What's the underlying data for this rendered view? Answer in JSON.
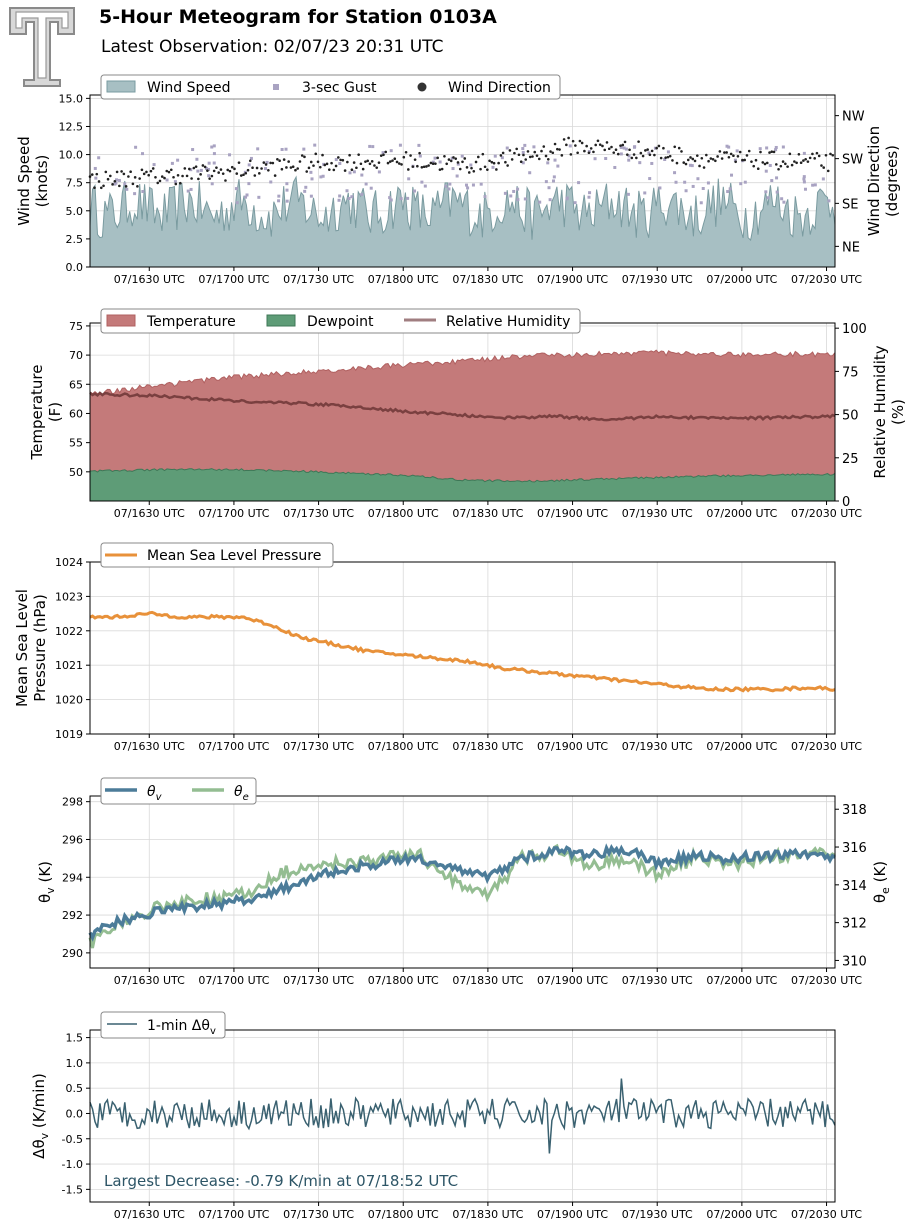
{
  "page": {
    "title": "5-Hour Meteogram for Station 0103A",
    "subtitle": "Latest Observation: 02/07/23 20:31 UTC",
    "logo": "texas-tech-double-t-logo"
  },
  "colors": {
    "wind_fill": "#a7bfc3",
    "wind_edge": "#7a9ba0",
    "gust": "#a9a3c2",
    "direction": "#222222",
    "temperature": "#c47a7a",
    "temperature_edge": "#b06060",
    "dewpoint": "#5e9c77",
    "dewpoint_edge": "#3f7757",
    "rh": "#7a4040",
    "pressure": "#e8913a",
    "theta_v": "#4c7c99",
    "theta_e": "#94bd92",
    "dtheta": "#3a6170",
    "annotation": "#2d5566"
  },
  "time_ticks": [
    "07/1630 UTC",
    "07/1700 UTC",
    "07/1730 UTC",
    "07/1800 UTC",
    "07/1830 UTC",
    "07/1900 UTC",
    "07/1930 UTC",
    "07/2000 UTC",
    "07/2030 UTC"
  ],
  "chart_data": [
    {
      "type": "area",
      "id": "wind",
      "ylabel": "Wind Speed\n(knots)",
      "y2label": "Wind Direction\n(degrees)",
      "ylim": [
        0,
        15.3
      ],
      "yticks": [
        "0.0",
        "2.5",
        "5.0",
        "7.5",
        "10.0",
        "12.5",
        "15.0"
      ],
      "y2ticks": [
        "NE",
        "SE",
        "SW",
        "NW"
      ],
      "legend": [
        "Wind Speed",
        "3-sec Gust",
        "Wind Direction"
      ],
      "x_range_hours": [
        16.15,
        20.55
      ],
      "series": [
        {
          "name": "Wind Speed",
          "kind": "area",
          "values_knots_base": 5.2,
          "amplitude": 2.3
        },
        {
          "name": "3-sec Gust",
          "kind": "scatter",
          "values_knots_base": 8.3,
          "amplitude": 2.6
        },
        {
          "name": "Wind Direction",
          "kind": "scatter",
          "segments": [
            {
              "x": 16.15,
              "y": 7.7
            },
            {
              "x": 16.9,
              "y": 8.4
            },
            {
              "x": 17.5,
              "y": 9.3
            },
            {
              "x": 18.0,
              "y": 9.5
            },
            {
              "x": 18.4,
              "y": 9.1
            },
            {
              "x": 18.7,
              "y": 9.8
            },
            {
              "x": 19.0,
              "y": 10.8
            },
            {
              "x": 19.4,
              "y": 10.4
            },
            {
              "x": 19.8,
              "y": 9.6
            },
            {
              "x": 20.1,
              "y": 9.5
            },
            {
              "x": 20.55,
              "y": 9.3
            }
          ]
        }
      ]
    },
    {
      "type": "area",
      "id": "thermo",
      "ylabel": "Temperature\n(F)",
      "y2label": "Relative Humidity\n(%)",
      "ylim": [
        45,
        75.5
      ],
      "yticks": [
        "50",
        "55",
        "60",
        "65",
        "70",
        "75"
      ],
      "y2lim": [
        0,
        103
      ],
      "y2ticks": [
        "0",
        "25",
        "50",
        "75",
        "100"
      ],
      "legend": [
        "Temperature",
        "Dewpoint",
        "Relative Humidity"
      ],
      "series": [
        {
          "name": "Temperature",
          "x": [
            16.15,
            16.5,
            17.0,
            17.5,
            18.0,
            18.3,
            18.6,
            18.8,
            19.0,
            19.2,
            19.5,
            19.8,
            20.0,
            20.3,
            20.55
          ],
          "y": [
            63.3,
            64.6,
            66.2,
            67.3,
            68.3,
            68.8,
            69.6,
            70.1,
            70.0,
            70.3,
            70.4,
            70.0,
            70.1,
            70.2,
            70.1
          ]
        },
        {
          "name": "Dewpoint",
          "x": [
            16.15,
            16.6,
            17.0,
            17.5,
            18.0,
            18.4,
            18.8,
            19.2,
            19.6,
            20.0,
            20.55
          ],
          "y": [
            50.1,
            50.4,
            50.4,
            50.0,
            49.4,
            48.5,
            48.4,
            48.8,
            49.1,
            49.4,
            49.6
          ]
        },
        {
          "name": "Relative Humidity",
          "x": [
            16.15,
            16.5,
            17.0,
            17.5,
            18.0,
            18.3,
            18.6,
            18.9,
            19.2,
            19.5,
            19.8,
            20.1,
            20.55
          ],
          "y": [
            62,
            61,
            58,
            56,
            52,
            50,
            48,
            49,
            47,
            49,
            48,
            48,
            49
          ]
        }
      ]
    },
    {
      "type": "line",
      "id": "pressure",
      "ylabel": "Mean Sea Level\nPressure (hPa)",
      "ylim": [
        1019,
        1024
      ],
      "yticks": [
        "1019",
        "1020",
        "1021",
        "1022",
        "1023",
        "1024"
      ],
      "legend": [
        "Mean Sea Level Pressure"
      ],
      "series": [
        {
          "name": "Mean Sea Level Pressure",
          "x": [
            16.15,
            16.3,
            16.5,
            16.7,
            16.9,
            17.05,
            17.2,
            17.4,
            17.6,
            17.8,
            18.0,
            18.2,
            18.4,
            18.6,
            18.8,
            19.0,
            19.2,
            19.4,
            19.6,
            19.8,
            20.0,
            20.2,
            20.4,
            20.55
          ],
          "y": [
            1022.4,
            1022.4,
            1022.5,
            1022.4,
            1022.4,
            1022.4,
            1022.2,
            1021.8,
            1021.6,
            1021.4,
            1021.3,
            1021.2,
            1021.1,
            1020.9,
            1020.8,
            1020.7,
            1020.6,
            1020.5,
            1020.4,
            1020.3,
            1020.3,
            1020.3,
            1020.35,
            1020.3
          ]
        }
      ]
    },
    {
      "type": "line",
      "id": "theta",
      "ylabel": "θv (K)",
      "y2label": "θe (K)",
      "ylim": [
        289.2,
        298.3
      ],
      "yticks": [
        "290",
        "292",
        "294",
        "296",
        "298"
      ],
      "y2lim": [
        309.6,
        318.7
      ],
      "y2ticks": [
        "310",
        "312",
        "314",
        "316",
        "318"
      ],
      "legend": [
        "θv",
        "θe"
      ],
      "series": [
        {
          "name": "θv",
          "x": [
            16.15,
            16.3,
            16.5,
            16.7,
            16.9,
            17.1,
            17.3,
            17.5,
            17.7,
            17.9,
            18.1,
            18.3,
            18.5,
            18.7,
            18.9,
            19.1,
            19.3,
            19.5,
            19.7,
            19.9,
            20.1,
            20.3,
            20.55
          ],
          "y": [
            291.0,
            291.6,
            292.1,
            292.4,
            292.6,
            292.8,
            293.4,
            294.1,
            294.5,
            294.8,
            295.0,
            294.5,
            294.0,
            295.0,
            295.4,
            295.2,
            295.5,
            294.8,
            295.1,
            295.0,
            295.1,
            295.2,
            295.0
          ]
        },
        {
          "name": "θe",
          "x": [
            16.15,
            16.3,
            16.5,
            16.7,
            16.9,
            17.1,
            17.3,
            17.5,
            17.7,
            17.9,
            18.1,
            18.3,
            18.5,
            18.7,
            18.9,
            19.1,
            19.3,
            19.5,
            19.7,
            19.9,
            20.1,
            20.3,
            20.55
          ],
          "y": [
            311.0,
            311.8,
            312.6,
            313.1,
            313.3,
            313.6,
            314.6,
            315.0,
            315.2,
            315.5,
            315.6,
            314.2,
            313.3,
            315.5,
            315.8,
            315.0,
            315.4,
            314.5,
            315.4,
            315.2,
            315.3,
            315.5,
            315.6
          ]
        }
      ]
    },
    {
      "type": "line",
      "id": "dtheta",
      "ylabel": "Δθv (K/min)",
      "ylim": [
        -1.75,
        1.65
      ],
      "yticks": [
        "-1.5",
        "-1.0",
        "-0.5",
        "0.0",
        "0.5",
        "1.0",
        "1.5"
      ],
      "legend": [
        "1-min Δθv"
      ],
      "annotation": "Largest Decrease: -0.79 K/min at 07/18:52 UTC",
      "series": [
        {
          "name": "1-min Δθv",
          "baseline": 0.0,
          "amplitude": 0.3,
          "min": -0.79,
          "max": 0.69
        }
      ]
    }
  ]
}
